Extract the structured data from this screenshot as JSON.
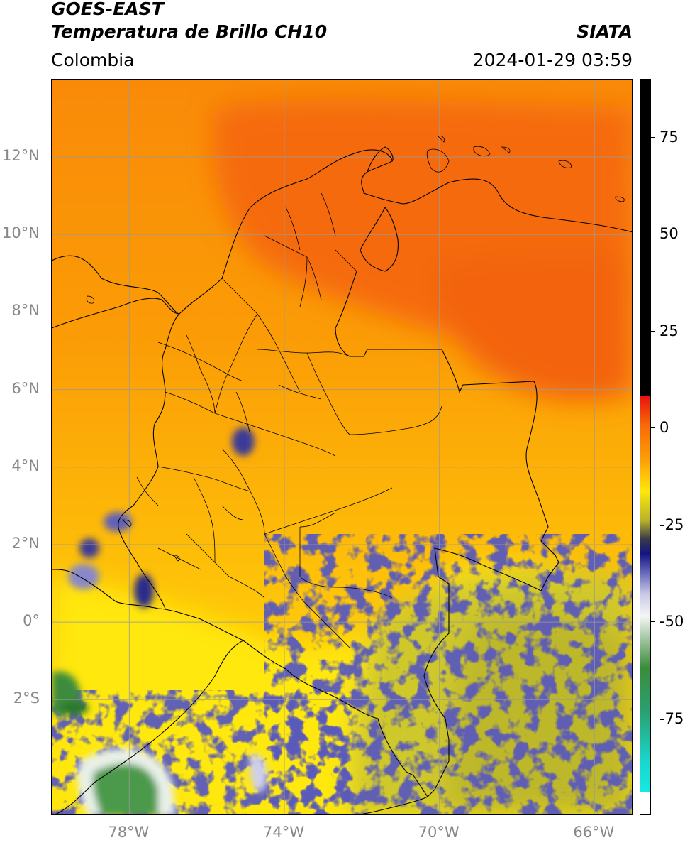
{
  "header": {
    "line1": "GOES-EAST",
    "line2": "Temperatura de Brillo CH10",
    "region": "Colombia",
    "source": "SIATA",
    "datetime": "2024-01-29 03:59"
  },
  "map": {
    "lat_ticks": [
      {
        "value": 12,
        "label": "12°N"
      },
      {
        "value": 10,
        "label": "10°N"
      },
      {
        "value": 8,
        "label": "8°N"
      },
      {
        "value": 6,
        "label": "6°N"
      },
      {
        "value": 4,
        "label": "4°N"
      },
      {
        "value": 2,
        "label": "2°N"
      },
      {
        "value": 0,
        "label": "0°"
      },
      {
        "value": -2,
        "label": "2°S"
      }
    ],
    "lon_ticks": [
      {
        "value": -78,
        "label": "78°W"
      },
      {
        "value": -74,
        "label": "74°W"
      },
      {
        "value": -70,
        "label": "70°W"
      },
      {
        "value": -66,
        "label": "66°W"
      }
    ],
    "lat_range": [
      -5.0,
      14.0
    ],
    "lon_range": [
      -80.0,
      -65.0
    ],
    "colors": {
      "orange_red": "#f56a10",
      "orange": "#fb9a06",
      "amber": "#fdc00a",
      "yellow": "#ffe80a",
      "olive": "#c6c22a",
      "navy": "#1a1a80",
      "white": "#f4f4f4",
      "green": "#3c8c3c",
      "cyan": "#18d8d0"
    }
  },
  "colorbar": {
    "ticks": [
      {
        "value": 75,
        "label": "75"
      },
      {
        "value": 50,
        "label": "50"
      },
      {
        "value": 25,
        "label": "25"
      },
      {
        "value": 0,
        "label": "0"
      },
      {
        "value": -25,
        "label": "-25"
      },
      {
        "value": -50,
        "label": "-50"
      },
      {
        "value": -75,
        "label": "-75"
      }
    ],
    "range": [
      -100,
      90
    ]
  }
}
